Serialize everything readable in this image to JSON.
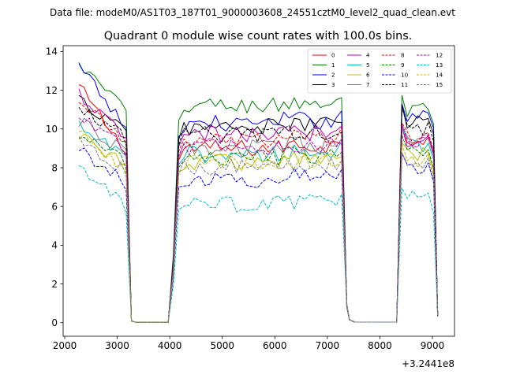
{
  "suptitle": "Data file: modeM0/AS1T03_187T01_9000003608_24551cztM0_level2_quad_clean.evt",
  "chart_data": {
    "type": "line",
    "title": "Quadrant 0 module wise count rates with 100.0s bins.",
    "xlabel": "",
    "ylabel": "",
    "x_offset_label": "+3.2441e8",
    "xlim": [
      1970,
      9420
    ],
    "ylim": [
      -0.7,
      14.3
    ],
    "xticks": [
      2000,
      3000,
      4000,
      5000,
      6000,
      7000,
      8000,
      9000
    ],
    "yticks": [
      0,
      2,
      4,
      6,
      8,
      10,
      12,
      14
    ],
    "xtick_labels": [
      "2000",
      "3000",
      "4000",
      "5000",
      "6000",
      "7000",
      "8000",
      "9000"
    ],
    "ytick_labels": [
      "0",
      "2",
      "4",
      "6",
      "8",
      "10",
      "12",
      "14"
    ],
    "legend_position": "top-right",
    "segments_x": [
      [
        2270,
        2370,
        2470,
        2570,
        2670,
        2770,
        2870,
        2970,
        3070,
        3170
      ],
      [
        3270,
        3370,
        3470,
        3570,
        3670,
        3770,
        3870,
        3970
      ],
      [
        4070,
        4170,
        4270,
        4370,
        4470,
        4570,
        4670,
        4770,
        4870,
        4970,
        5070,
        5170,
        5270,
        5370,
        5470,
        5570,
        5670,
        5770,
        5870,
        5970,
        6070,
        6170,
        6270,
        6370,
        6470,
        6570,
        6670,
        6770,
        6870,
        6970,
        7070,
        7170,
        7270,
        7370
      ],
      [
        7420,
        7520,
        7620,
        7720,
        7820,
        7920,
        8020,
        8120,
        8220,
        8320
      ],
      [
        8420,
        8520,
        8620,
        8720,
        8820,
        8920,
        9020,
        9100
      ]
    ],
    "series": [
      {
        "name": "0",
        "color": "#ff0000",
        "dash": "solid",
        "level": 9.0,
        "start": 12.2,
        "post": 9.5
      },
      {
        "name": "1",
        "color": "#008000",
        "dash": "solid",
        "level": 11.2,
        "start": 13.3,
        "post": 10.9
      },
      {
        "name": "2",
        "color": "#0000ff",
        "dash": "solid",
        "level": 10.3,
        "start": 13.2,
        "post": 10.7
      },
      {
        "name": "3",
        "color": "#000000",
        "dash": "solid",
        "level": 10.1,
        "start": 11.5,
        "post": 10.4
      },
      {
        "name": "4",
        "color": "#bf00bf",
        "dash": "solid",
        "level": 9.7,
        "start": 11.8,
        "post": 9.5
      },
      {
        "name": "5",
        "color": "#00bfbf",
        "dash": "solid",
        "level": 8.7,
        "start": 10.1,
        "post": 9.1
      },
      {
        "name": "6",
        "color": "#bfbf00",
        "dash": "solid",
        "level": 8.3,
        "start": 9.8,
        "post": 8.6
      },
      {
        "name": "7",
        "color": "#808080",
        "dash": "solid",
        "level": 9.0,
        "start": 10.4,
        "post": 9.3
      },
      {
        "name": "8",
        "color": "#ff0000",
        "dash": "dashed",
        "level": 9.4,
        "start": 11.6,
        "post": 9.6
      },
      {
        "name": "9",
        "color": "#008000",
        "dash": "dashed",
        "level": 8.5,
        "start": 9.7,
        "post": 8.7
      },
      {
        "name": "10",
        "color": "#0000ff",
        "dash": "dashed",
        "level": 7.4,
        "start": 9.0,
        "post": 8.0
      },
      {
        "name": "11",
        "color": "#000000",
        "dash": "dashed",
        "level": 9.7,
        "start": 11.2,
        "post": 10.1
      },
      {
        "name": "12",
        "color": "#bf00bf",
        "dash": "dashed",
        "level": 9.1,
        "start": 10.6,
        "post": 9.4
      },
      {
        "name": "13",
        "color": "#00bfbf",
        "dash": "dashed",
        "level": 6.1,
        "start": 8.1,
        "post": 6.4
      },
      {
        "name": "14",
        "color": "#bfbf00",
        "dash": "dashed",
        "level": 8.2,
        "start": 9.8,
        "post": 8.4
      },
      {
        "name": "15",
        "color": "#808080",
        "dash": "dashed",
        "level": 8.0,
        "start": 9.5,
        "post": 8.2
      }
    ]
  }
}
